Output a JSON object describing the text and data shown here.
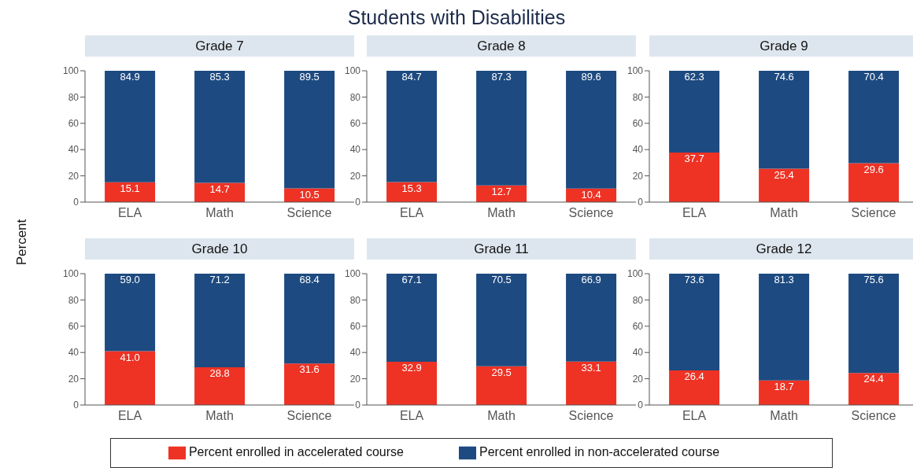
{
  "chart_data": [
    {
      "type": "bar",
      "title": "Grade 7",
      "ylabel": "Percent",
      "annotations": [
        "Students with Disabilities"
      ],
      "legend": "bottom",
      "stacked": true,
      "data_labels": true,
      "categories": [
        "ELA",
        "Math",
        "Science"
      ],
      "ylim": [
        0,
        100
      ],
      "yticks": [
        0,
        20,
        40,
        60,
        80,
        100
      ],
      "series": [
        {
          "name": "Percent enrolled in accelerated course",
          "color": "#ee3224",
          "values": [
            15.1,
            14.7,
            10.5
          ]
        },
        {
          "name": "Percent enrolled in non-accelerated course",
          "color": "#1d4a80",
          "values": [
            84.9,
            85.3,
            89.5
          ]
        }
      ]
    },
    {
      "type": "bar",
      "title": "Grade 8",
      "stacked": true,
      "data_labels": true,
      "categories": [
        "ELA",
        "Math",
        "Science"
      ],
      "ylim": [
        0,
        100
      ],
      "yticks": [
        0,
        20,
        40,
        60,
        80,
        100
      ],
      "series": [
        {
          "color": "#ee3224",
          "values": [
            15.3,
            12.7,
            10.4
          ]
        },
        {
          "color": "#1d4a80",
          "values": [
            84.7,
            87.3,
            89.6
          ]
        }
      ]
    },
    {
      "type": "bar",
      "title": "Grade 9",
      "stacked": true,
      "data_labels": true,
      "categories": [
        "ELA",
        "Math",
        "Science"
      ],
      "ylim": [
        0,
        100
      ],
      "yticks": [
        0,
        20,
        40,
        60,
        80,
        100
      ],
      "series": [
        {
          "color": "#ee3224",
          "values": [
            37.7,
            25.4,
            29.6
          ]
        },
        {
          "color": "#1d4a80",
          "values": [
            62.3,
            74.6,
            70.4
          ]
        }
      ]
    },
    {
      "type": "bar",
      "title": "Grade 10",
      "stacked": true,
      "data_labels": true,
      "categories": [
        "ELA",
        "Math",
        "Science"
      ],
      "ylim": [
        0,
        100
      ],
      "yticks": [
        0,
        20,
        40,
        60,
        80,
        100
      ],
      "series": [
        {
          "color": "#ee3224",
          "values": [
            41.0,
            28.8,
            31.6
          ],
          "value_labels": [
            "41.0",
            "28.8",
            "31.6"
          ]
        },
        {
          "color": "#1d4a80",
          "values": [
            59.0,
            71.2,
            68.4
          ],
          "value_labels": [
            "59.0",
            "71.2",
            "68.4"
          ]
        }
      ]
    },
    {
      "type": "bar",
      "title": "Grade 11",
      "stacked": true,
      "data_labels": true,
      "categories": [
        "ELA",
        "Math",
        "Science"
      ],
      "ylim": [
        0,
        100
      ],
      "yticks": [
        0,
        20,
        40,
        60,
        80,
        100
      ],
      "series": [
        {
          "color": "#ee3224",
          "values": [
            32.9,
            29.5,
            33.1
          ]
        },
        {
          "color": "#1d4a80",
          "values": [
            67.1,
            70.5,
            66.9
          ]
        }
      ]
    },
    {
      "type": "bar",
      "title": "Grade 12",
      "stacked": true,
      "data_labels": true,
      "categories": [
        "ELA",
        "Math",
        "Science"
      ],
      "ylim": [
        0,
        100
      ],
      "yticks": [
        0,
        20,
        40,
        60,
        80,
        100
      ],
      "series": [
        {
          "color": "#ee3224",
          "values": [
            26.4,
            18.7,
            24.4
          ]
        },
        {
          "color": "#1d4a80",
          "values": [
            73.6,
            81.3,
            75.6
          ]
        }
      ]
    }
  ]
}
